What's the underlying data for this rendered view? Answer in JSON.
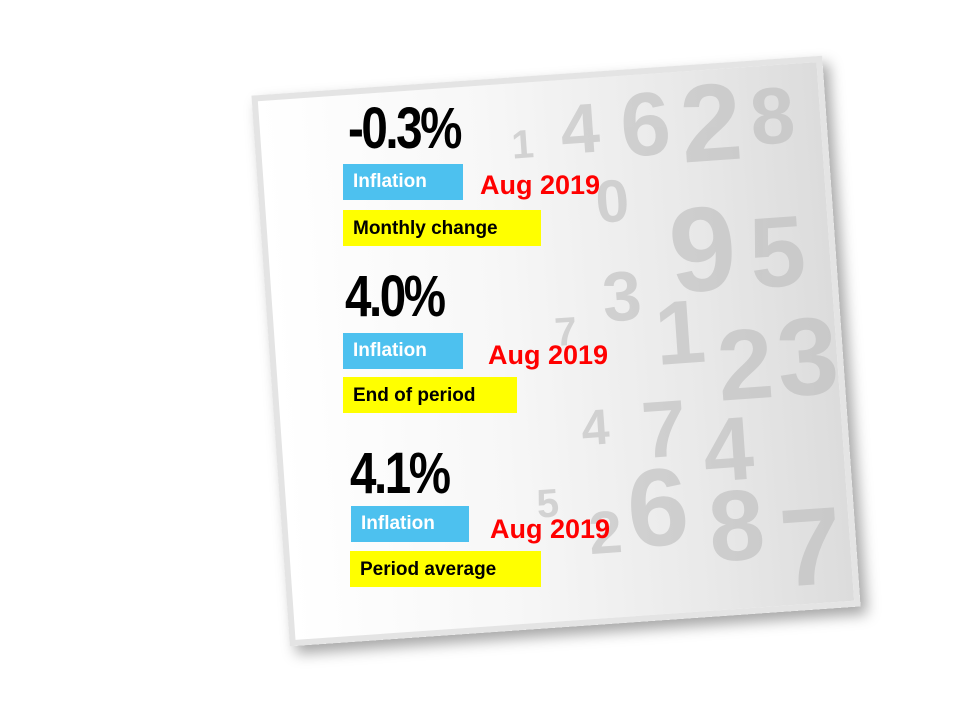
{
  "stats": [
    {
      "value": "-0.3%",
      "tag": "Inflation",
      "date": "Aug 2019",
      "desc": "Monthly change"
    },
    {
      "value": "4.0%",
      "tag": "Inflation",
      "date": "Aug 2019",
      "desc": "End of period"
    },
    {
      "value": "4.1%",
      "tag": "Inflation",
      "date": "Aug 2019",
      "desc": "Period average"
    }
  ],
  "colors": {
    "tag_blue": "#4dc1ef",
    "tag_yellow": "#ffff00",
    "date_red": "#ff0000"
  }
}
